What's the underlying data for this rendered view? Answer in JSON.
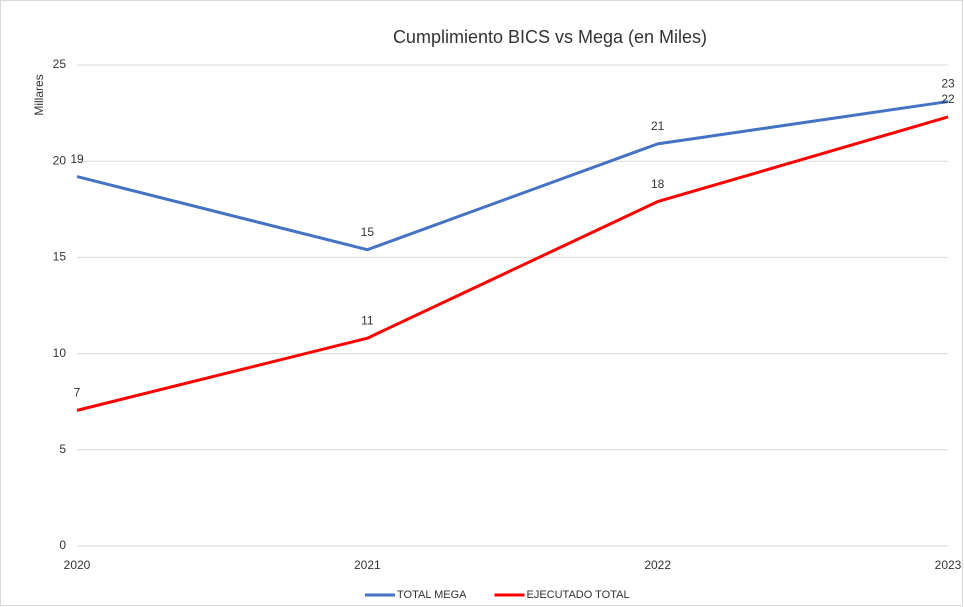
{
  "chart_data": {
    "type": "line",
    "title": "Cumplimiento BICS vs Mega (en Miles)",
    "y_label": "Millares",
    "categories": [
      "2020",
      "2021",
      "2022",
      "2023"
    ],
    "series": [
      {
        "name": "TOTAL MEGA",
        "color": "#4472c4",
        "values": [
          19.2,
          15.4,
          20.9,
          23.1
        ],
        "value_labels": [
          "19",
          "15",
          "21",
          "23"
        ]
      },
      {
        "name": "EJECUTADO TOTAL",
        "color": "#ff0000",
        "values": [
          7.05,
          10.8,
          17.9,
          22.3
        ],
        "value_labels": [
          "7",
          "11",
          "18",
          "22"
        ]
      }
    ],
    "ylim": [
      0,
      25
    ],
    "yticks": [
      0,
      5,
      10,
      15,
      20,
      25
    ],
    "grid": true,
    "legend": "bottom"
  }
}
